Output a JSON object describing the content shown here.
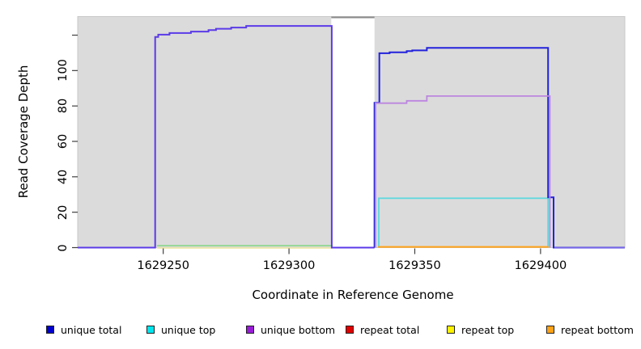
{
  "axes": {
    "x_title": "Coordinate in Reference Genome",
    "y_title": "Read Coverage Depth",
    "x_ticks": [
      {
        "value": 1629250,
        "label": "1629250"
      },
      {
        "value": 1629300,
        "label": "1629300"
      },
      {
        "value": 1629350,
        "label": "1629350"
      },
      {
        "value": 1629400,
        "label": "1629400"
      }
    ],
    "y_ticks": [
      {
        "value": 0,
        "label": "0"
      },
      {
        "value": 20,
        "label": "20"
      },
      {
        "value": 40,
        "label": "40"
      },
      {
        "value": 60,
        "label": "60"
      },
      {
        "value": 80,
        "label": "80"
      },
      {
        "value": 100,
        "label": "100"
      },
      {
        "value": 120,
        "label": ""
      }
    ]
  },
  "legend": {
    "items": [
      {
        "label": "unique total",
        "color": "#0000CC"
      },
      {
        "label": "unique top",
        "color": "#00E5EE"
      },
      {
        "label": "unique bottom",
        "color": "#981CD6"
      },
      {
        "label": "repeat total",
        "color": "#E00000"
      },
      {
        "label": "repeat top",
        "color": "#FFF200"
      },
      {
        "label": "repeat bottom",
        "color": "#FFA217"
      }
    ]
  },
  "chart_data": {
    "type": "line",
    "title": "",
    "xlabel": "Coordinate in Reference Genome",
    "ylabel": "Read Coverage Depth",
    "x_range": [
      1629216,
      1629433.5
    ],
    "y_range": [
      0,
      130.5
    ],
    "x_tick_values": [
      1629250,
      1629300,
      1629350,
      1629400
    ],
    "y_tick_values": [
      0,
      20,
      40,
      60,
      80,
      100,
      120
    ],
    "grid": false,
    "legend_position": "bottom",
    "plot_background": "#DBDBDB",
    "no_data_gap": {
      "x0": 1629316.8,
      "x1": 1629334,
      "top_line_color": "#8A8A8A"
    },
    "series": [
      {
        "name": "unique total",
        "color": "#0000CC",
        "points": [
          [
            1629216,
            0
          ],
          [
            1629247,
            0
          ],
          [
            1629247,
            119
          ],
          [
            1629248,
            120
          ],
          [
            1629253,
            121
          ],
          [
            1629261,
            122
          ],
          [
            1629268,
            123
          ],
          [
            1629277,
            124
          ],
          [
            1629283,
            125
          ],
          [
            1629317,
            125
          ],
          [
            1629317,
            0
          ],
          [
            1629334,
            0
          ],
          [
            1629334,
            110
          ],
          [
            1629347,
            111
          ],
          [
            1629355,
            113
          ],
          [
            1629403,
            113
          ],
          [
            1629403,
            28
          ],
          [
            1629405,
            28
          ],
          [
            1629405,
            0
          ],
          [
            1629433,
            0
          ]
        ]
      },
      {
        "name": "unique top",
        "color": "#00E5EE",
        "points": [
          [
            1629216,
            0
          ],
          [
            1629335.5,
            0
          ],
          [
            1629335.5,
            28
          ],
          [
            1629403,
            28
          ],
          [
            1629403,
            0
          ],
          [
            1629433,
            0
          ]
        ]
      },
      {
        "name": "unique bottom",
        "color": "#981CD6",
        "points": [
          [
            1629216,
            0
          ],
          [
            1629247,
            0
          ],
          [
            1629247,
            119
          ],
          [
            1629253,
            121
          ],
          [
            1629261,
            122
          ],
          [
            1629277,
            124
          ],
          [
            1629283,
            125
          ],
          [
            1629317,
            125
          ],
          [
            1629317,
            0
          ],
          [
            1629334,
            0
          ],
          [
            1629334,
            82
          ],
          [
            1629347,
            83
          ],
          [
            1629355,
            86
          ],
          [
            1629404,
            86
          ],
          [
            1629404,
            0
          ],
          [
            1629433,
            0
          ]
        ]
      },
      {
        "name": "repeat total",
        "color": "#E00000",
        "points": [
          [
            1629216,
            0
          ],
          [
            1629433,
            0
          ]
        ]
      },
      {
        "name": "repeat top",
        "color": "#FFF200",
        "points": [
          [
            1629247.5,
            0
          ],
          [
            1629317.3,
            0
          ]
        ]
      },
      {
        "name": "repeat bottom",
        "color": "#FFA217",
        "points": [
          [
            1629335.4,
            0
          ],
          [
            1629403,
            0
          ]
        ]
      }
    ],
    "render_segments": [
      {
        "name": "repeat-top-left-baseline",
        "color": "#EDE6A4",
        "width": 1.6,
        "points": [
          [
            1629247.5,
            -0.2
          ],
          [
            1629317.3,
            -0.2
          ]
        ]
      },
      {
        "name": "overlap-green-left-baseline",
        "color": "#8FD78F",
        "width": 1.8,
        "points": [
          [
            1629247.5,
            1.1
          ],
          [
            1629317.3,
            1.1
          ]
        ]
      },
      {
        "name": "unique-total-and-bottom-left",
        "color": "#5B3BE8",
        "width": 2,
        "points": [
          [
            1629216,
            0
          ],
          [
            1629246.8,
            0
          ],
          [
            1629246.8,
            119
          ],
          [
            1629248,
            119
          ],
          [
            1629248,
            120.3
          ],
          [
            1629252.5,
            120.3
          ],
          [
            1629252.5,
            121.2
          ],
          [
            1629261,
            121.2
          ],
          [
            1629261,
            122
          ],
          [
            1629268,
            122
          ],
          [
            1629268,
            122.9
          ],
          [
            1629271,
            122.9
          ],
          [
            1629271,
            123.6
          ],
          [
            1629277,
            123.6
          ],
          [
            1629277,
            124.3
          ],
          [
            1629283,
            124.3
          ],
          [
            1629283,
            125.2
          ],
          [
            1629317,
            125.2
          ],
          [
            1629317,
            0
          ],
          [
            1629334,
            0
          ]
        ]
      },
      {
        "name": "unique-top-right",
        "color": "#5BD8DE",
        "width": 1.8,
        "points": [
          [
            1629335.7,
            0
          ],
          [
            1629335.7,
            27.9
          ],
          [
            1629403,
            27.9
          ],
          [
            1629403,
            0
          ]
        ]
      },
      {
        "name": "unique-total-right",
        "color": "#2222DC",
        "width": 2,
        "points": [
          [
            1629334,
            0
          ],
          [
            1629334,
            81.8
          ],
          [
            1629335.9,
            81.8
          ],
          [
            1629335.9,
            109.8
          ],
          [
            1629340,
            109.8
          ],
          [
            1629340,
            110.3
          ],
          [
            1629346.8,
            110.3
          ],
          [
            1629346.8,
            111
          ],
          [
            1629349,
            111
          ],
          [
            1629349,
            111.4
          ],
          [
            1629354.8,
            111.4
          ],
          [
            1629354.8,
            112.8
          ],
          [
            1629403,
            112.8
          ],
          [
            1629403,
            28.4
          ],
          [
            1629405.2,
            28.4
          ],
          [
            1629405.2,
            0
          ],
          [
            1629433.5,
            0
          ]
        ]
      },
      {
        "name": "unique-bottom-right",
        "color": "#BC86DF",
        "width": 1.8,
        "points": [
          [
            1629334.4,
            0
          ],
          [
            1629334.4,
            81.6
          ],
          [
            1629346.8,
            81.6
          ],
          [
            1629346.8,
            82.9
          ],
          [
            1629354.8,
            82.9
          ],
          [
            1629354.8,
            85.6
          ],
          [
            1629403.7,
            85.6
          ],
          [
            1629403.7,
            0
          ]
        ]
      },
      {
        "name": "right-baseline-tint",
        "color": "#7A66E8",
        "width": 1.4,
        "points": [
          [
            1629405.5,
            0
          ],
          [
            1629433.5,
            0
          ]
        ]
      },
      {
        "name": "repeat-bottom-right",
        "color": "#FFA217",
        "width": 2,
        "points": [
          [
            1629335.4,
            0.4
          ],
          [
            1629403.2,
            0.4
          ]
        ]
      }
    ]
  }
}
